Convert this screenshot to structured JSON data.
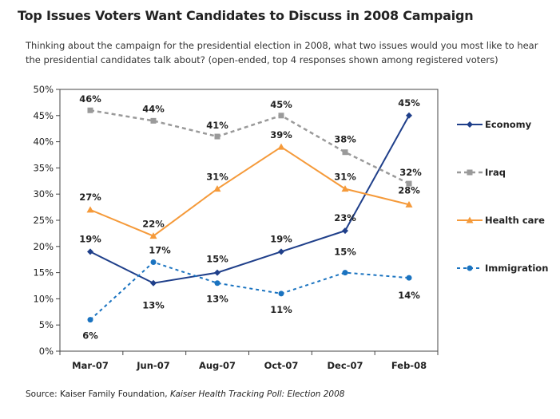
{
  "title": "Top Issues Voters Want Candidates to Discuss in 2008 Campaign",
  "subtitle": "Thinking about the campaign for the presidential election in 2008, what two issues would you most like to hear the presidential candidates talk about? (open-ended, top 4 responses shown among registered voters)",
  "source": {
    "prefix": "Source: Kaiser Family Foundation, ",
    "italic": "Kaiser Health Tracking Poll: Election 2008"
  },
  "chart_data": {
    "type": "line",
    "categories": [
      "Mar-07",
      "Jun-07",
      "Aug-07",
      "Oct-07",
      "Dec-07",
      "Feb-08"
    ],
    "ylim": [
      0,
      50
    ],
    "yticks": [
      "0%",
      "5%",
      "10%",
      "15%",
      "20%",
      "25%",
      "30%",
      "35%",
      "40%",
      "45%",
      "50%"
    ],
    "grid": false,
    "legend_position": "right",
    "series": [
      {
        "name": "Economy",
        "values": [
          19,
          13,
          15,
          19,
          23,
          45
        ],
        "labels": [
          "19%",
          "13%",
          "15%",
          "19%",
          "23%",
          "45%"
        ],
        "color": "#1f3f8a",
        "dash": "solid",
        "marker": "diamond"
      },
      {
        "name": "Iraq",
        "values": [
          46,
          44,
          41,
          45,
          38,
          32
        ],
        "labels": [
          "46%",
          "44%",
          "41%",
          "45%",
          "38%",
          "32%"
        ],
        "color": "#9a9a9a",
        "dash": "dashed",
        "marker": "square"
      },
      {
        "name": "Health care",
        "values": [
          27,
          22,
          31,
          39,
          31,
          28
        ],
        "labels": [
          "27%",
          "22%",
          "31%",
          "39%",
          "31%",
          "28%"
        ],
        "color": "#f59a3a",
        "dash": "solid",
        "marker": "triangle"
      },
      {
        "name": "Immigration",
        "values": [
          6,
          17,
          13,
          11,
          15,
          14
        ],
        "labels": [
          "6%",
          "17%",
          "13%",
          "11%",
          "15%",
          "14%"
        ],
        "color": "#1a73c0",
        "dash": "dashed",
        "marker": "circle"
      }
    ]
  }
}
